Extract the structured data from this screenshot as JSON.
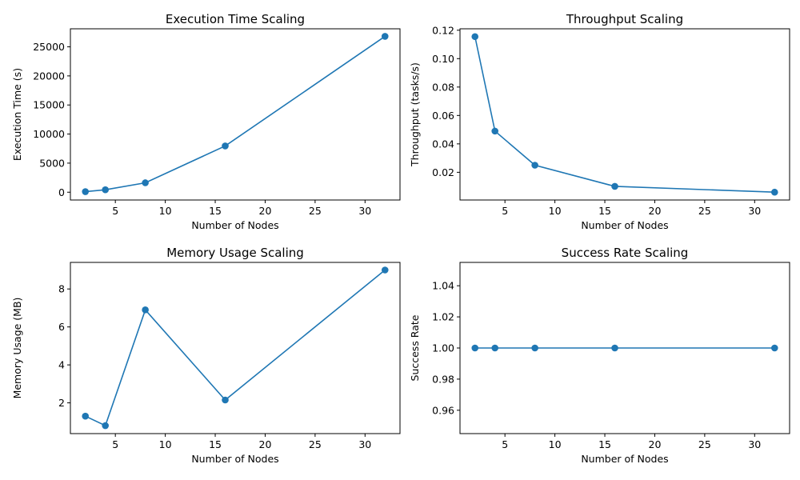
{
  "chart_data": [
    {
      "type": "line",
      "title": "Execution Time Scaling",
      "xlabel": "Number of Nodes",
      "ylabel": "Execution Time (s)",
      "xlim": [
        0.5,
        33.5
      ],
      "ylim": [
        -1340,
        28100
      ],
      "xticks": [
        5,
        10,
        15,
        20,
        25,
        30
      ],
      "yticks": [
        0,
        5000,
        10000,
        15000,
        20000,
        25000
      ],
      "grid": false,
      "color": "#1f77b4",
      "series": [
        {
          "x": [
            2,
            4,
            8,
            16,
            32
          ],
          "y": [
            100,
            420,
            1620,
            7950,
            26800
          ]
        }
      ]
    },
    {
      "type": "line",
      "title": "Throughput Scaling",
      "xlabel": "Number of Nodes",
      "ylabel": "Throughput (tasks/s)",
      "xlim": [
        0.5,
        33.5
      ],
      "ylim": [
        0.0005,
        0.121
      ],
      "xticks": [
        5,
        10,
        15,
        20,
        25,
        30
      ],
      "yticks": [
        0.02,
        0.04,
        0.06,
        0.08,
        0.1,
        0.12
      ],
      "ytick_labels": [
        "0.02",
        "0.04",
        "0.06",
        "0.08",
        "0.10",
        "0.12"
      ],
      "grid": false,
      "color": "#1f77b4",
      "series": [
        {
          "x": [
            2,
            4,
            8,
            16,
            32
          ],
          "y": [
            0.1155,
            0.049,
            0.025,
            0.0101,
            0.006
          ]
        }
      ]
    },
    {
      "type": "line",
      "title": "Memory Usage Scaling",
      "xlabel": "Number of Nodes",
      "ylabel": "Memory Usage (MB)",
      "xlim": [
        0.5,
        33.5
      ],
      "ylim": [
        0.38,
        9.4
      ],
      "xticks": [
        5,
        10,
        15,
        20,
        25,
        30
      ],
      "yticks": [
        2,
        4,
        6,
        8
      ],
      "grid": false,
      "color": "#1f77b4",
      "series": [
        {
          "x": [
            2,
            4,
            8,
            16,
            32
          ],
          "y": [
            1.3,
            0.8,
            6.9,
            2.15,
            9.0
          ]
        }
      ]
    },
    {
      "type": "line",
      "title": "Success Rate Scaling",
      "xlabel": "Number of Nodes",
      "ylabel": "Success Rate",
      "xlim": [
        0.5,
        33.5
      ],
      "ylim": [
        0.945,
        1.055
      ],
      "xticks": [
        5,
        10,
        15,
        20,
        25,
        30
      ],
      "yticks": [
        0.96,
        0.98,
        1.0,
        1.02,
        1.04
      ],
      "ytick_labels": [
        "0.96",
        "0.98",
        "1.00",
        "1.02",
        "1.04"
      ],
      "grid": false,
      "color": "#1f77b4",
      "series": [
        {
          "x": [
            2,
            4,
            8,
            16,
            32
          ],
          "y": [
            1.0,
            1.0,
            1.0,
            1.0,
            1.0
          ]
        }
      ]
    }
  ]
}
